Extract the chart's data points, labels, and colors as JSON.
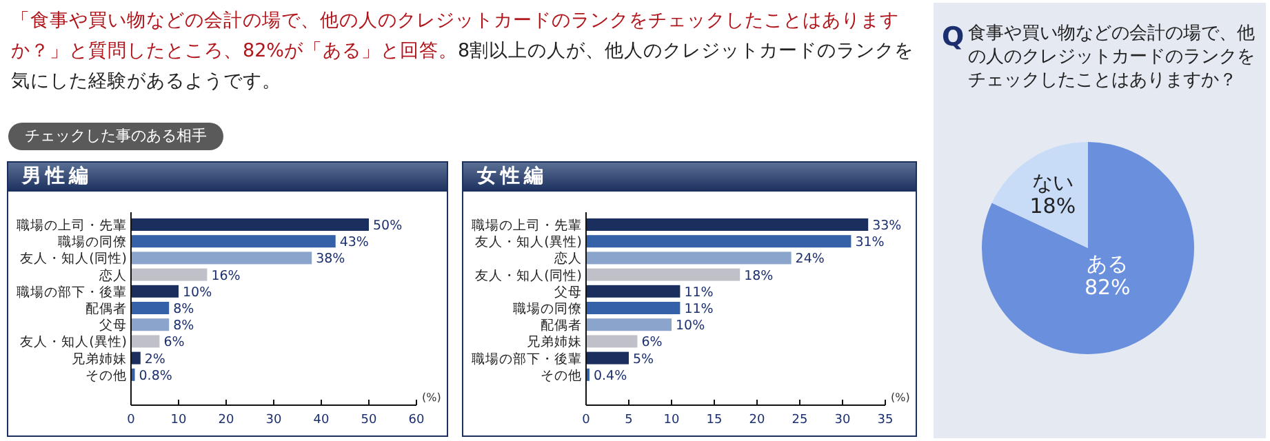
{
  "chart_data": [
    {
      "type": "other",
      "title": "「食事や買い物などの会計の場で、他の人のクレジットカードのランクをチェックしたことはありますか？」と質問したところ、82%が「ある」と回答。",
      "subtitle": "8割以上の人が、他人のクレジットカードのランクを気にした経験があるようです。",
      "annotations": [
        "チェックした事のある相手"
      ]
    },
    {
      "type": "bar",
      "orientation": "horizontal",
      "title": "男性編",
      "xlabel": "(%)",
      "categories": [
        "職場の上司・先輩",
        "職場の同僚",
        "友人・知人(同性)",
        "恋人",
        "職場の部下・後輩",
        "配偶者",
        "父母",
        "友人・知人(異性)",
        "兄弟姉妹",
        "その他"
      ],
      "values": [
        50,
        43,
        38,
        16,
        10,
        8,
        8,
        6,
        2,
        0.8
      ],
      "value_labels": [
        "50%",
        "43%",
        "38%",
        "16%",
        "10%",
        "8%",
        "8%",
        "6%",
        "2%",
        "0.8%"
      ],
      "colors": [
        "#1b2f5e",
        "#3461a8",
        "#8aa4cc",
        "#c0c0c8",
        "#1b2f5e",
        "#3461a8",
        "#8aa4cc",
        "#c0c0c8",
        "#1b2f5e",
        "#3461a8"
      ],
      "xlim": [
        0,
        60
      ],
      "xticks": [
        0,
        10,
        20,
        30,
        40,
        50,
        60
      ]
    },
    {
      "type": "bar",
      "orientation": "horizontal",
      "title": "女性編",
      "xlabel": "(%)",
      "categories": [
        "職場の上司・先輩",
        "友人・知人(異性)",
        "恋人",
        "友人・知人(同性)",
        "父母",
        "職場の同僚",
        "配偶者",
        "兄弟姉妹",
        "職場の部下・後輩",
        "その他"
      ],
      "values": [
        33,
        31,
        24,
        18,
        11,
        11,
        10,
        6,
        5,
        0.4
      ],
      "value_labels": [
        "33%",
        "31%",
        "24%",
        "18%",
        "11%",
        "11%",
        "10%",
        "6%",
        "5%",
        "0.4%"
      ],
      "colors": [
        "#1b2f5e",
        "#3461a8",
        "#8aa4cc",
        "#c0c0c8",
        "#1b2f5e",
        "#3461a8",
        "#8aa4cc",
        "#c0c0c8",
        "#1b2f5e",
        "#3461a8"
      ],
      "xlim": [
        0,
        35
      ],
      "xticks": [
        0,
        5,
        10,
        15,
        20,
        25,
        30,
        35
      ]
    },
    {
      "type": "pie",
      "title": "食事や買い物などの会計の場で、他の人のクレジットカードのランクをチェックしたことはありますか？",
      "annotations": [
        "Q"
      ],
      "categories": [
        "ある",
        "ない"
      ],
      "values": [
        82,
        18
      ],
      "value_labels": [
        "82%",
        "18%"
      ],
      "colors": [
        "#6a8fdc",
        "#c8dcf8"
      ]
    }
  ]
}
